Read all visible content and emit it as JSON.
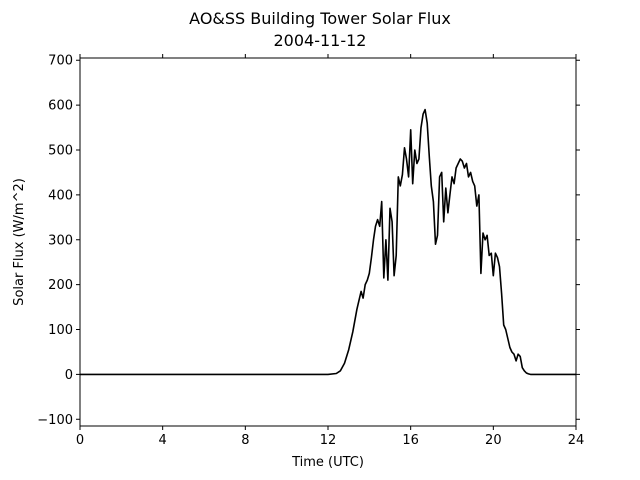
{
  "chart_data": {
    "type": "line",
    "title": "AO&SS Building Tower Solar Flux",
    "subtitle": "2004-11-12",
    "xlabel": "Time (UTC)",
    "ylabel": "Solar Flux (W/m^2)",
    "xlim": [
      0,
      24
    ],
    "ylim": [
      -115,
      705
    ],
    "xticks": [
      0,
      4,
      8,
      12,
      16,
      20,
      24
    ],
    "yticks": [
      -100,
      0,
      100,
      200,
      300,
      400,
      500,
      600,
      700
    ],
    "xtick_labels": [
      "0",
      "4",
      "8",
      "12",
      "16",
      "20",
      "24"
    ],
    "ytick_labels": [
      "−100",
      "0",
      "100",
      "200",
      "300",
      "400",
      "500",
      "600",
      "700"
    ],
    "grid": false,
    "series": [
      {
        "color": "#000000",
        "x": [
          0,
          12.0,
          12.4,
          12.6,
          12.8,
          13.0,
          13.2,
          13.4,
          13.5,
          13.6,
          13.7,
          13.8,
          13.9,
          14.0,
          14.1,
          14.2,
          14.3,
          14.4,
          14.5,
          14.6,
          14.7,
          14.8,
          14.9,
          15.0,
          15.1,
          15.2,
          15.3,
          15.4,
          15.5,
          15.6,
          15.7,
          15.8,
          15.9,
          16.0,
          16.1,
          16.2,
          16.3,
          16.4,
          16.5,
          16.6,
          16.7,
          16.8,
          16.9,
          17.0,
          17.1,
          17.2,
          17.3,
          17.4,
          17.5,
          17.6,
          17.7,
          17.8,
          17.9,
          18.0,
          18.1,
          18.2,
          18.3,
          18.4,
          18.5,
          18.6,
          18.7,
          18.8,
          18.9,
          19.0,
          19.1,
          19.2,
          19.3,
          19.4,
          19.5,
          19.6,
          19.7,
          19.8,
          19.9,
          20.0,
          20.1,
          20.2,
          20.3,
          20.4,
          20.5,
          20.6,
          20.7,
          20.8,
          20.9,
          21.0,
          21.1,
          21.2,
          21.3,
          21.4,
          21.5,
          21.6,
          21.7,
          21.8,
          21.9,
          22.0,
          22.1,
          22.2,
          22.3,
          22.4,
          22.6,
          22.8,
          23.0,
          24.0
        ],
        "y": [
          0,
          0,
          2,
          8,
          25,
          55,
          95,
          145,
          165,
          185,
          170,
          200,
          210,
          225,
          260,
          300,
          330,
          345,
          330,
          385,
          215,
          300,
          210,
          370,
          340,
          220,
          265,
          440,
          420,
          445,
          505,
          480,
          440,
          545,
          425,
          500,
          470,
          480,
          550,
          580,
          590,
          560,
          485,
          420,
          385,
          290,
          310,
          440,
          450,
          340,
          415,
          360,
          400,
          440,
          425,
          460,
          470,
          480,
          475,
          460,
          470,
          440,
          450,
          430,
          420,
          375,
          400,
          225,
          315,
          300,
          310,
          265,
          270,
          220,
          270,
          260,
          240,
          180,
          110,
          100,
          80,
          60,
          50,
          45,
          30,
          45,
          40,
          15,
          8,
          3,
          1,
          0,
          0,
          0,
          0,
          0,
          0,
          0,
          0,
          0,
          0,
          0
        ]
      }
    ]
  }
}
